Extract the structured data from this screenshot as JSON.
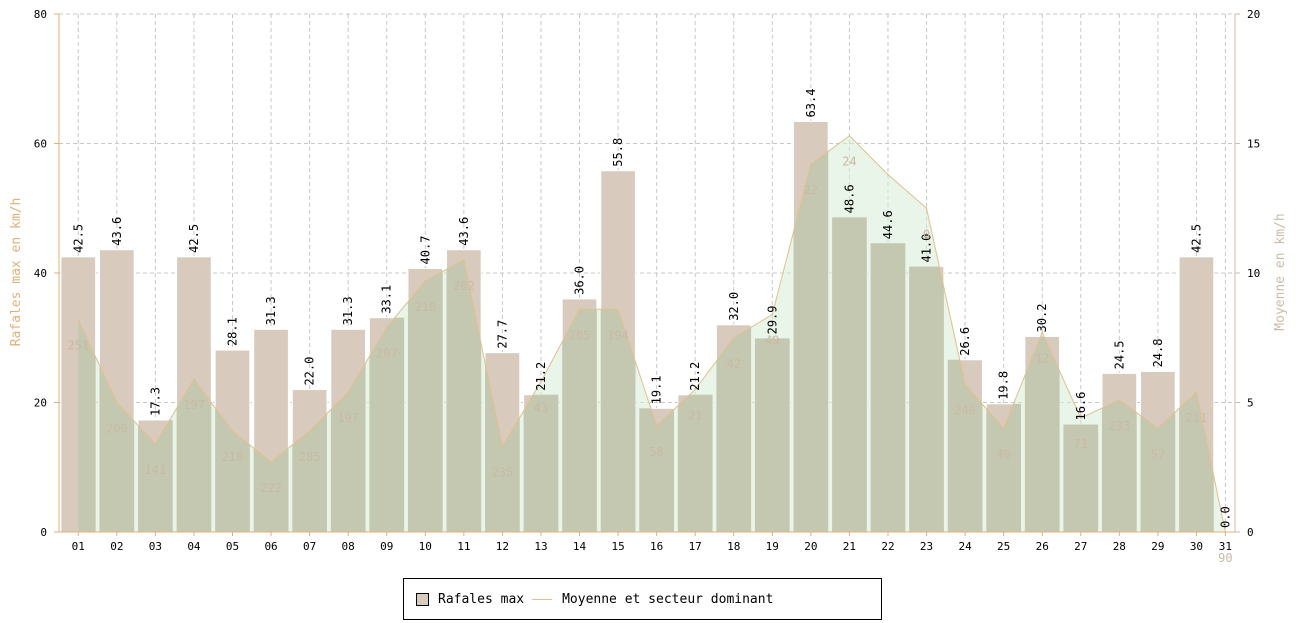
{
  "chart_data": {
    "type": "bar",
    "categories": [
      "01",
      "02",
      "03",
      "04",
      "05",
      "06",
      "07",
      "08",
      "09",
      "10",
      "11",
      "12",
      "13",
      "14",
      "15",
      "16",
      "17",
      "18",
      "19",
      "20",
      "21",
      "22",
      "23",
      "24",
      "25",
      "26",
      "27",
      "28",
      "29",
      "30",
      "31"
    ],
    "series": [
      {
        "name": "Rafales max",
        "axis": "left",
        "type": "bar",
        "values": [
          42.5,
          43.6,
          17.3,
          42.5,
          28.1,
          31.3,
          22.0,
          31.3,
          33.1,
          40.7,
          43.6,
          27.7,
          21.2,
          36.0,
          55.8,
          19.1,
          21.2,
          32.0,
          29.9,
          63.4,
          48.6,
          44.6,
          41.0,
          26.6,
          19.8,
          30.2,
          16.6,
          24.5,
          24.8,
          42.5,
          0.0
        ],
        "labels": [
          "42.5",
          "43.6",
          "17.3",
          "42.5",
          "28.1",
          "31.3",
          "22.0",
          "31.3",
          "33.1",
          "40.7",
          "43.6",
          "27.7",
          "21.2",
          "36.0",
          "55.8",
          "19.1",
          "21.2",
          "32.0",
          "29.9",
          "63.4",
          "48.6",
          "44.6",
          "41.0",
          "26.6",
          "19.8",
          "30.2",
          "16.6",
          "24.5",
          "24.8",
          "42.5",
          "0.0"
        ]
      },
      {
        "name": "Moyenne et secteur dominant",
        "axis": "right",
        "type": "area",
        "values": [
          8.2,
          5.0,
          3.4,
          5.9,
          3.9,
          2.7,
          3.9,
          5.4,
          7.9,
          9.7,
          10.5,
          3.3,
          5.8,
          8.6,
          8.6,
          4.1,
          5.5,
          7.5,
          8.4,
          14.2,
          15.3,
          13.8,
          12.5,
          5.7,
          4.0,
          7.7,
          4.4,
          5.1,
          4.0,
          5.4,
          0.0
        ],
        "labels": [
          "251",
          "209",
          "141",
          "197",
          "210",
          "222",
          "285",
          "197",
          "207",
          "210",
          "202",
          "235",
          "43",
          "205",
          "194",
          "58",
          "21",
          "42",
          "49",
          "22",
          "24",
          "",
          "0",
          "246",
          "40",
          "12",
          "71",
          "233",
          "57",
          "211",
          "90"
        ]
      }
    ],
    "ylabel_left": "Rafales max en km/h",
    "ylabel_right": "Moyenne en km/h",
    "ylim_left": [
      0,
      80
    ],
    "ylim_right": [
      0,
      20
    ],
    "yticks_left": [
      "0",
      "20",
      "40",
      "60",
      "80"
    ],
    "yticks_right": [
      "0",
      "5",
      "10",
      "15",
      "20"
    ],
    "grid": true,
    "legend_position": "bottom-center",
    "colors": {
      "bar_fill": "#d8cbbd",
      "bar_stroke": "#ffffff",
      "area_fill": "#d6ecd6",
      "area_line": "#e2bf8f",
      "overlap_fill": "#c5c8b0",
      "left_axis": "#e0b27a",
      "right_axis": "#cdbda8",
      "grid": "#c8c8c8",
      "dir_label": "#c9b9a4"
    }
  }
}
